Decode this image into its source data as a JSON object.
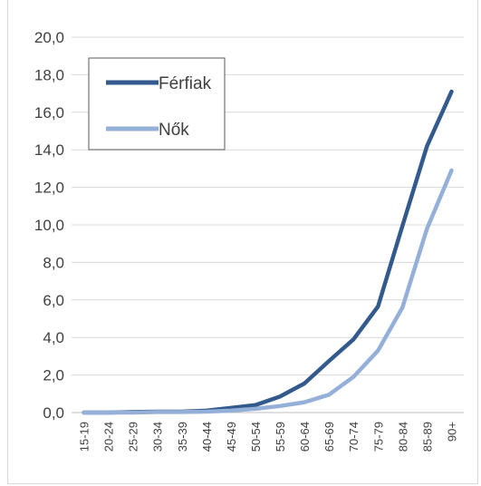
{
  "chart_data": {
    "type": "line",
    "title": "",
    "xlabel": "",
    "ylabel": "",
    "categories": [
      "15-19",
      "20-24",
      "25-29",
      "30-34",
      "35-39",
      "40-44",
      "45-49",
      "50-54",
      "55-59",
      "60-64",
      "65-69",
      "70-74",
      "75-79",
      "80-84",
      "85-89",
      "90+"
    ],
    "y_ticks": [
      "0,0",
      "2,0",
      "4,0",
      "6,0",
      "8,0",
      "10,0",
      "12,0",
      "14,0",
      "16,0",
      "18,0",
      "20,0"
    ],
    "ylim": [
      0,
      20
    ],
    "grid": true,
    "legend_position": "top-left",
    "series": [
      {
        "name": "Férfiak",
        "color": "#335a8c",
        "values": [
          0.0,
          0.0,
          0.03,
          0.05,
          0.05,
          0.1,
          0.25,
          0.4,
          0.85,
          1.55,
          2.75,
          3.9,
          5.65,
          9.95,
          14.2,
          17.1
        ]
      },
      {
        "name": "Nők",
        "color": "#94b0d8",
        "values": [
          0.0,
          0.0,
          0.0,
          0.03,
          0.03,
          0.05,
          0.1,
          0.2,
          0.35,
          0.55,
          0.95,
          1.9,
          3.3,
          5.6,
          9.8,
          12.9
        ]
      }
    ]
  }
}
